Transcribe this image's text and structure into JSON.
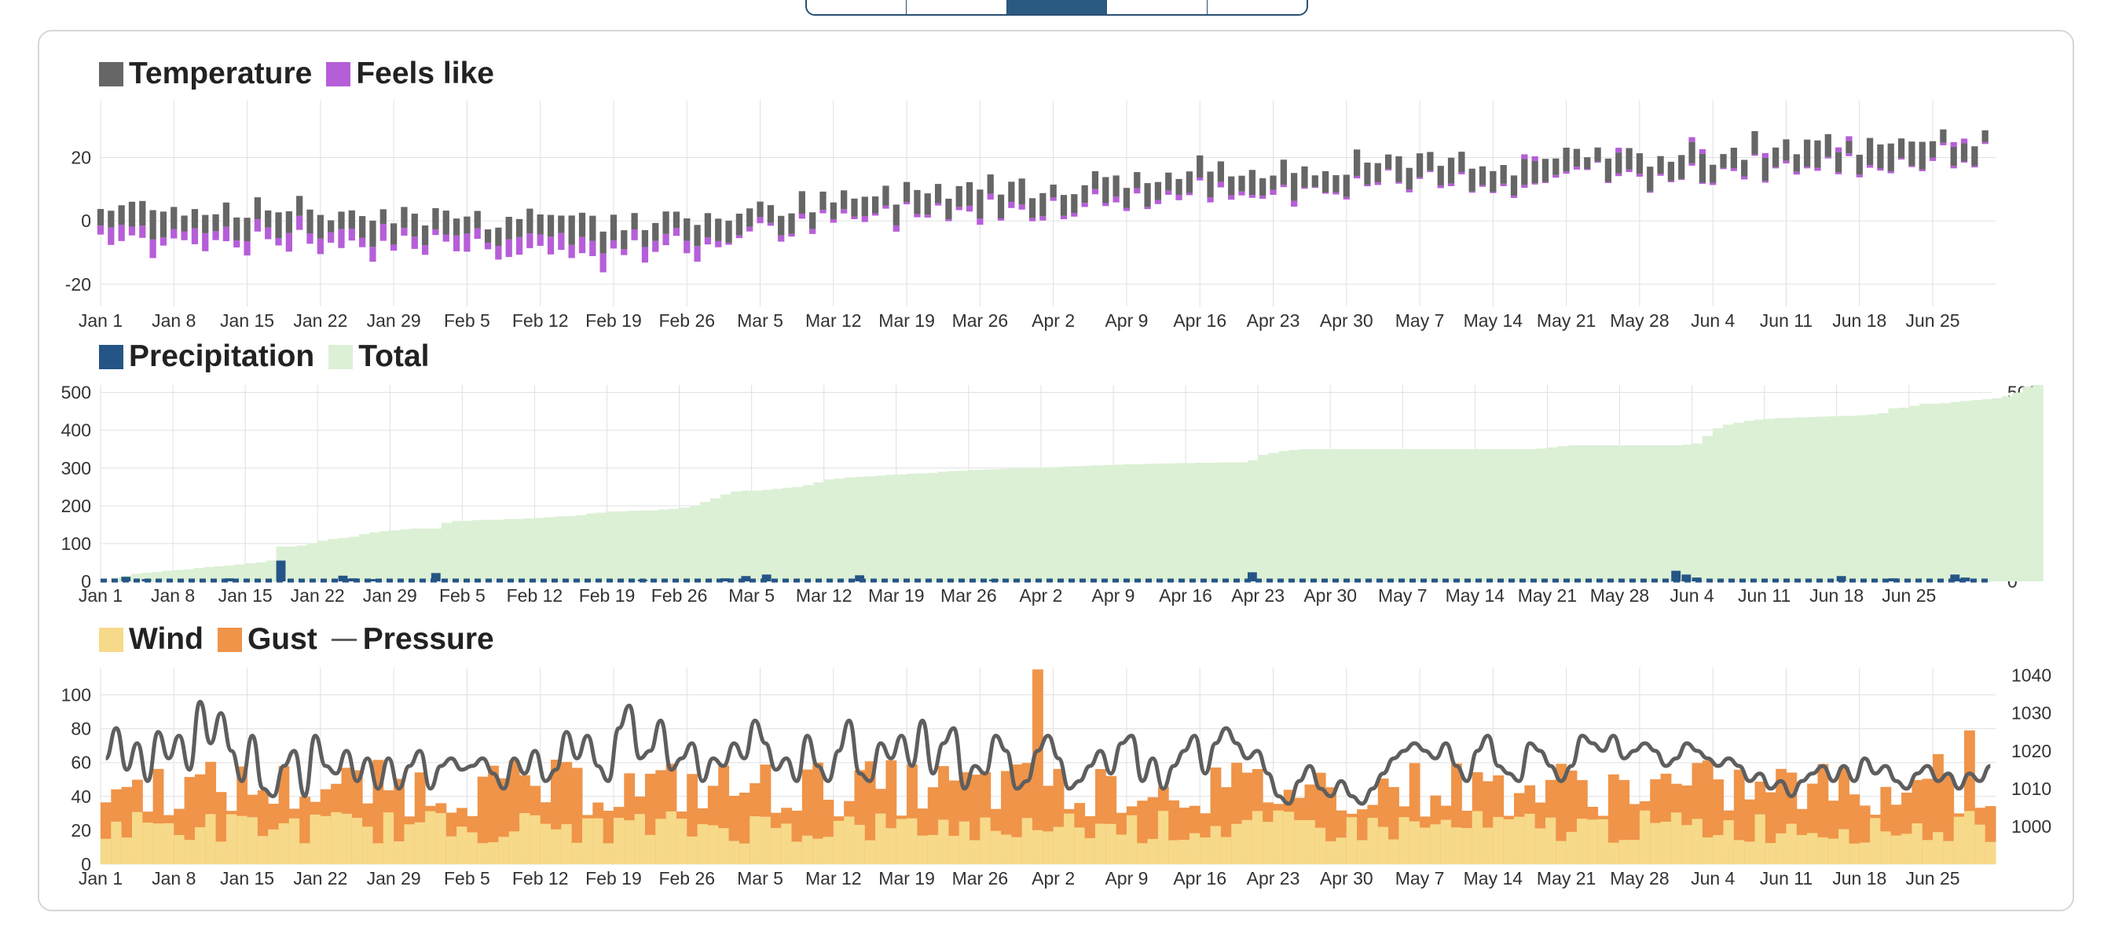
{
  "tabs": [
    {
      "label": ""
    },
    {
      "label": ""
    },
    {
      "label": "",
      "active": true
    },
    {
      "label": ""
    },
    {
      "label": ""
    }
  ],
  "colors": {
    "temperature": "#666666",
    "feels_like": "#b65ed8",
    "precipitation": "#255586",
    "total": "#dcf0d6",
    "wind": "#f7d98a",
    "gust": "#ef9449",
    "pressure": "#5e5e5e",
    "grid": "#e0e0e0"
  },
  "legends": {
    "temperature": "Temperature",
    "feels_like": "Feels like",
    "precipitation": "Precipitation",
    "total": "Total",
    "wind": "Wind",
    "gust": "Gust",
    "pressure": "Pressure"
  },
  "chart_data": [
    {
      "type": "bar",
      "id": "temperature",
      "xcategories": [
        "Jan 1",
        "Jan 8",
        "Jan 15",
        "Jan 22",
        "Jan 29",
        "Feb 5",
        "Feb 12",
        "Feb 19",
        "Feb 26",
        "Mar 5",
        "Mar 12",
        "Mar 19",
        "Mar 26",
        "Apr 2",
        "Apr 9",
        "Apr 16",
        "Apr 23",
        "Apr 30",
        "May 7",
        "May 14",
        "May 21",
        "May 28",
        "Jun 4",
        "Jun 11",
        "Jun 18",
        "Jun 25"
      ],
      "days": 181,
      "yticks": [
        20,
        0,
        -20
      ],
      "ylim": [
        -27,
        38
      ],
      "series": [
        {
          "name": "Temperature",
          "segments": [
            {
              "start_day": 0,
              "start": 2,
              "end": 0
            },
            {
              "start_day": 30,
              "start": 0,
              "end": -4
            },
            {
              "start_day": 50,
              "start": -3,
              "end": 0
            },
            {
              "start_day": 60,
              "start": -1,
              "end": 10
            },
            {
              "start_day": 80,
              "start": 8,
              "end": 13
            },
            {
              "start_day": 95,
              "start": 10,
              "end": 18
            },
            {
              "start_day": 110,
              "start": 14,
              "end": 19
            },
            {
              "start_day": 135,
              "start": 16,
              "end": 21
            },
            {
              "start_day": 150,
              "start": 18,
              "end": 23
            },
            {
              "start_day": 156,
              "start": 20,
              "end": 26
            },
            {
              "start_day": 181,
              "start": 24,
              "end": 24
            }
          ],
          "low_offset": -6,
          "high_offset": 5
        },
        {
          "name": "Feels like",
          "offset_winter": -6,
          "offset_spring": -2
        }
      ]
    },
    {
      "type": "bar+area",
      "id": "precipitation",
      "xcategories": [
        "Jan 1",
        "Jan 8",
        "Jan 15",
        "Jan 22",
        "Jan 29",
        "Feb 5",
        "Feb 12",
        "Feb 19",
        "Feb 26",
        "Mar 5",
        "Mar 12",
        "Mar 19",
        "Mar 26",
        "Apr 2",
        "Apr 9",
        "Apr 16",
        "Apr 23",
        "Apr 30",
        "May 7",
        "May 14",
        "May 21",
        "May 28",
        "Jun 4",
        "Jun 11",
        "Jun 18",
        "Jun 25"
      ],
      "days": 183,
      "yticks": [
        0,
        100,
        200,
        300,
        400,
        500
      ],
      "ylim": [
        0,
        520
      ],
      "series": [
        {
          "name": "Precipitation",
          "events": [
            {
              "day": 2,
              "mm": 12
            },
            {
              "day": 4,
              "mm": 6
            },
            {
              "day": 12,
              "mm": 8
            },
            {
              "day": 17,
              "mm": 55
            },
            {
              "day": 23,
              "mm": 15
            },
            {
              "day": 24,
              "mm": 8
            },
            {
              "day": 26,
              "mm": 6
            },
            {
              "day": 32,
              "mm": 22
            },
            {
              "day": 52,
              "mm": 5
            },
            {
              "day": 60,
              "mm": 8
            },
            {
              "day": 62,
              "mm": 14
            },
            {
              "day": 64,
              "mm": 18
            },
            {
              "day": 73,
              "mm": 16
            },
            {
              "day": 86,
              "mm": 5
            },
            {
              "day": 111,
              "mm": 24
            },
            {
              "day": 152,
              "mm": 28
            },
            {
              "day": 153,
              "mm": 18
            },
            {
              "day": 154,
              "mm": 10
            },
            {
              "day": 168,
              "mm": 14
            },
            {
              "day": 173,
              "mm": 8
            },
            {
              "day": 179,
              "mm": 18
            },
            {
              "day": 180,
              "mm": 10
            }
          ]
        },
        {
          "name": "Total",
          "values": [
            0,
            10,
            15,
            20,
            23,
            25,
            28,
            30,
            32,
            35,
            38,
            40,
            42,
            45,
            48,
            50,
            55,
            92,
            92,
            95,
            100,
            108,
            112,
            115,
            118,
            125,
            130,
            133,
            135,
            138,
            140,
            140,
            140,
            155,
            160,
            160,
            162,
            163,
            163,
            165,
            165,
            167,
            168,
            170,
            172,
            173,
            175,
            180,
            182,
            185,
            185,
            187,
            188,
            188,
            190,
            192,
            195,
            200,
            210,
            220,
            230,
            238,
            240,
            240,
            242,
            245,
            248,
            250,
            255,
            262,
            270,
            272,
            275,
            277,
            278,
            280,
            282,
            283,
            285,
            286,
            287,
            290,
            292,
            293,
            295,
            296,
            297,
            298,
            299,
            300,
            301,
            302,
            303,
            304,
            305,
            306,
            307,
            308,
            309,
            310,
            310,
            311,
            312,
            312,
            313,
            313,
            314,
            314,
            315,
            315,
            315,
            320,
            335,
            340,
            345,
            348,
            350,
            350,
            350,
            350,
            350,
            350,
            350,
            350,
            350,
            350,
            350,
            350,
            350,
            350,
            350,
            350,
            350,
            350,
            350,
            350,
            350,
            350,
            350,
            352,
            355,
            358,
            360,
            360,
            360,
            360,
            360,
            360,
            360,
            360,
            360,
            360,
            360,
            362,
            365,
            385,
            405,
            415,
            420,
            425,
            428,
            430,
            432,
            433,
            434,
            435,
            436,
            437,
            438,
            438,
            440,
            442,
            445,
            458,
            460,
            465,
            470,
            470,
            472,
            475,
            478,
            480,
            482,
            485,
            490,
            500,
            515,
            520
          ]
        }
      ]
    },
    {
      "type": "bar+line",
      "id": "wind",
      "xcategories": [
        "Jan 1",
        "Jan 8",
        "Jan 15",
        "Jan 22",
        "Jan 29",
        "Feb 5",
        "Feb 12",
        "Feb 19",
        "Feb 26",
        "Mar 5",
        "Mar 12",
        "Mar 19",
        "Mar 26",
        "Apr 2",
        "Apr 9",
        "Apr 16",
        "Apr 23",
        "Apr 30",
        "May 7",
        "May 14",
        "May 21",
        "May 28",
        "Jun 4",
        "Jun 11",
        "Jun 18",
        "Jun 25"
      ],
      "days": 181,
      "yticks_left": [
        0,
        20,
        40,
        60,
        80,
        100
      ],
      "ylim_left": [
        0,
        116
      ],
      "yticks_right": [
        1000,
        1010,
        1020,
        1030,
        1040
      ],
      "ylim_right": [
        990,
        1042
      ],
      "series": [
        {
          "name": "Wind",
          "base": 22,
          "min": 10,
          "max": 40
        },
        {
          "name": "Gust",
          "base": 45,
          "peaks": [
            {
              "day": 89,
              "value": 115
            },
            {
              "day": 178,
              "value": 79
            },
            {
              "day": 175,
              "value": 65
            }
          ]
        },
        {
          "name": "Pressure",
          "points": [
            1018,
            1026,
            1015,
            1022,
            1012,
            1025,
            1018,
            1024,
            1015,
            1033,
            1022,
            1030,
            1020,
            1012,
            1024,
            1010,
            1008,
            1016,
            1020,
            1008,
            1024,
            1016,
            1014,
            1020,
            1012,
            1018,
            1010,
            1018,
            1010,
            1016,
            1020,
            1010,
            1016,
            1018,
            1015,
            1016,
            1018,
            1014,
            1010,
            1018,
            1014,
            1020,
            1012,
            1015,
            1025,
            1018,
            1024,
            1016,
            1012,
            1026,
            1032,
            1018,
            1020,
            1028,
            1015,
            1018,
            1022,
            1012,
            1018,
            1016,
            1022,
            1018,
            1028,
            1022,
            1015,
            1018,
            1012,
            1024,
            1016,
            1012,
            1020,
            1028,
            1014,
            1012,
            1022,
            1018,
            1024,
            1016,
            1028,
            1014,
            1022,
            1026,
            1010,
            1016,
            1014,
            1024,
            1020,
            1010,
            1012,
            1020,
            1024,
            1018,
            1010,
            1012,
            1016,
            1020,
            1014,
            1022,
            1024,
            1012,
            1018,
            1010,
            1016,
            1020,
            1024,
            1014,
            1022,
            1026,
            1022,
            1018,
            1020,
            1014,
            1008,
            1006,
            1012,
            1016,
            1010,
            1008,
            1012,
            1008,
            1006,
            1010,
            1014,
            1018,
            1020,
            1022,
            1020,
            1018,
            1022,
            1016,
            1012,
            1020,
            1024,
            1016,
            1014,
            1012,
            1022,
            1020,
            1016,
            1012,
            1016,
            1024,
            1022,
            1020,
            1024,
            1018,
            1020,
            1022,
            1020,
            1016,
            1018,
            1022,
            1020,
            1018,
            1016,
            1018,
            1016,
            1012,
            1014,
            1010,
            1012,
            1008,
            1012,
            1014,
            1016,
            1012,
            1016,
            1012,
            1018,
            1014,
            1016,
            1012,
            1010,
            1014,
            1016,
            1012,
            1014,
            1010,
            1014,
            1012,
            1016
          ]
        }
      ]
    }
  ]
}
